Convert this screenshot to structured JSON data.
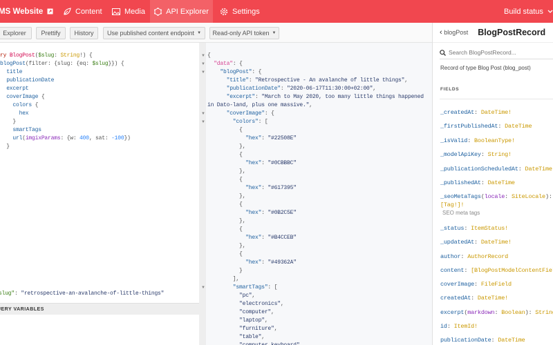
{
  "nav": {
    "brand": "MS Website",
    "tabs": [
      {
        "label": "Content",
        "icon": "leaf-icon"
      },
      {
        "label": "Media",
        "icon": "image-icon"
      },
      {
        "label": "API Explorer",
        "icon": "graphql-icon",
        "active": true
      },
      {
        "label": "Settings",
        "icon": "gear-icon"
      }
    ],
    "build_status": "Build status",
    "color": "#f1474f"
  },
  "toolbar": {
    "explorer": "Explorer",
    "prettify": "Prettify",
    "history": "History",
    "endpoint": "Use published content endpoint",
    "token": "Read-only API token"
  },
  "query": {
    "lines": [
      [
        [
          "ry ",
          "kw"
        ],
        [
          "BlogPost",
          "def"
        ],
        [
          "(",
          "pun"
        ],
        [
          "$slug",
          "var"
        ],
        [
          ": ",
          "pun"
        ],
        [
          "String",
          "type"
        ],
        [
          "!) {",
          "pun"
        ]
      ],
      [
        [
          "blogPost",
          "prop"
        ],
        [
          "(filter: {slug: {eq: ",
          "pun"
        ],
        [
          "$slug",
          "var"
        ],
        [
          "}}) {",
          "pun"
        ]
      ],
      [
        [
          "  title",
          "prop"
        ]
      ],
      [
        [
          "  publicationDate",
          "prop"
        ]
      ],
      [
        [
          "  excerpt",
          "prop"
        ]
      ],
      [
        [
          "  coverImage",
          "prop"
        ],
        [
          " {",
          "pun"
        ]
      ],
      [
        [
          "    colors",
          "prop"
        ],
        [
          " {",
          "pun"
        ]
      ],
      [
        [
          "      hex",
          "prop"
        ]
      ],
      [
        [
          "    }",
          "pun"
        ]
      ],
      [
        [
          "    smartTags",
          "prop"
        ]
      ],
      [
        [
          "    url",
          "prop"
        ],
        [
          "(",
          "pun"
        ],
        [
          "imgixParams",
          "arg"
        ],
        [
          ": {w: ",
          "pun"
        ],
        [
          "400",
          "num"
        ],
        [
          ", sat: ",
          "pun"
        ],
        [
          "-100",
          "num"
        ],
        [
          "})",
          "pun"
        ]
      ],
      [
        [
          "  }",
          "pun"
        ]
      ]
    ],
    "variables_header": "QUERY VARIABLES",
    "variables_lines": [
      [
        [
          "slug\"",
          "var"
        ],
        [
          ": ",
          "pun"
        ],
        [
          "\"retrospective-an-avalanche-of-little-things\"",
          "str"
        ]
      ]
    ]
  },
  "result": {
    "lines": [
      [
        [
          "{",
          "pun"
        ]
      ],
      [
        [
          "  \"data\"",
          "pk"
        ],
        [
          ": {",
          "pun"
        ]
      ],
      [
        [
          "    \"blogPost\"",
          "prop"
        ],
        [
          ": {",
          "pun"
        ]
      ],
      [
        [
          "      \"title\"",
          "prop"
        ],
        [
          ": ",
          "pun"
        ],
        [
          "\"Retrospective - An avalanche of little things\"",
          "str"
        ],
        [
          ",",
          "pun"
        ]
      ],
      [
        [
          "      \"publicationDate\"",
          "prop"
        ],
        [
          ": ",
          "pun"
        ],
        [
          "\"2020-06-17T11:30:00+02:00\"",
          "str"
        ],
        [
          ",",
          "pun"
        ]
      ],
      [
        [
          "      \"excerpt\"",
          "prop"
        ],
        [
          ": ",
          "pun"
        ],
        [
          "\"March to May 2020, too many little things happened",
          "str"
        ]
      ],
      [
        [
          "in Dato-land, plus one massive.\"",
          "str"
        ],
        [
          ",",
          "pun"
        ]
      ],
      [
        [
          "      \"coverImage\"",
          "prop"
        ],
        [
          ": {",
          "pun"
        ]
      ],
      [
        [
          "        \"colors\"",
          "prop"
        ],
        [
          ": [",
          "pun"
        ]
      ],
      [
        [
          "          {",
          "pun"
        ]
      ],
      [
        [
          "            \"hex\"",
          "prop"
        ],
        [
          ": ",
          "pun"
        ],
        [
          "\"#22508E\"",
          "str"
        ]
      ],
      [
        [
          "          },",
          "pun"
        ]
      ],
      [
        [
          "          {",
          "pun"
        ]
      ],
      [
        [
          "            \"hex\"",
          "prop"
        ],
        [
          ": ",
          "pun"
        ],
        [
          "\"#0CBBBC\"",
          "str"
        ]
      ],
      [
        [
          "          },",
          "pun"
        ]
      ],
      [
        [
          "          {",
          "pun"
        ]
      ],
      [
        [
          "            \"hex\"",
          "prop"
        ],
        [
          ": ",
          "pun"
        ],
        [
          "\"#617395\"",
          "str"
        ]
      ],
      [
        [
          "          },",
          "pun"
        ]
      ],
      [
        [
          "          {",
          "pun"
        ]
      ],
      [
        [
          "            \"hex\"",
          "prop"
        ],
        [
          ": ",
          "pun"
        ],
        [
          "\"#0B2C5E\"",
          "str"
        ]
      ],
      [
        [
          "          },",
          "pun"
        ]
      ],
      [
        [
          "          {",
          "pun"
        ]
      ],
      [
        [
          "            \"hex\"",
          "prop"
        ],
        [
          ": ",
          "pun"
        ],
        [
          "\"#B4CCEB\"",
          "str"
        ]
      ],
      [
        [
          "          },",
          "pun"
        ]
      ],
      [
        [
          "          {",
          "pun"
        ]
      ],
      [
        [
          "            \"hex\"",
          "prop"
        ],
        [
          ": ",
          "pun"
        ],
        [
          "\"#49362A\"",
          "str"
        ]
      ],
      [
        [
          "          }",
          "pun"
        ]
      ],
      [
        [
          "        ],",
          "pun"
        ]
      ],
      [
        [
          "        \"smartTags\"",
          "prop"
        ],
        [
          ": [",
          "pun"
        ]
      ],
      [
        [
          "          \"pc\"",
          "str"
        ],
        [
          ",",
          "pun"
        ]
      ],
      [
        [
          "          \"electronics\"",
          "str"
        ],
        [
          ",",
          "pun"
        ]
      ],
      [
        [
          "          \"computer\"",
          "str"
        ],
        [
          ",",
          "pun"
        ]
      ],
      [
        [
          "          \"laptop\"",
          "str"
        ],
        [
          ",",
          "pun"
        ]
      ],
      [
        [
          "          \"furniture\"",
          "str"
        ],
        [
          ",",
          "pun"
        ]
      ],
      [
        [
          "          \"table\"",
          "str"
        ],
        [
          ",",
          "pun"
        ]
      ],
      [
        [
          "          \"computer keyboard\"",
          "str"
        ],
        [
          ",",
          "pun"
        ]
      ]
    ],
    "fold_lines": [
      0,
      1,
      2,
      7,
      8,
      28
    ]
  },
  "docs": {
    "back": "blogPost",
    "title": "BlogPostRecord",
    "search_placeholder": "Search BlogPostRecord...",
    "description": "Record of type Blog Post (blog_post)",
    "fields_header": "FIELDS",
    "fields": [
      [
        [
          "_createdAt",
          "prop"
        ],
        [
          ": ",
          "pun"
        ],
        [
          "DateTime!",
          "type"
        ]
      ],
      [
        [
          "_firstPublishedAt",
          "prop"
        ],
        [
          ": ",
          "pun"
        ],
        [
          "DateTime",
          "type"
        ]
      ],
      [
        [
          "_isValid",
          "prop"
        ],
        [
          ": ",
          "pun"
        ],
        [
          "BooleanType!",
          "type"
        ]
      ],
      [
        [
          "_modelApiKey",
          "prop"
        ],
        [
          ": ",
          "pun"
        ],
        [
          "String!",
          "type"
        ]
      ],
      [
        [
          "_publicationScheduledAt",
          "prop"
        ],
        [
          ": ",
          "pun"
        ],
        [
          "DateTime",
          "type"
        ]
      ],
      [
        [
          "_publishedAt",
          "prop"
        ],
        [
          ": ",
          "pun"
        ],
        [
          "DateTime",
          "type"
        ]
      ],
      [
        [
          "_seoMetaTags",
          "prop"
        ],
        [
          "(",
          "pun"
        ],
        [
          "locale",
          "arg"
        ],
        [
          ": ",
          "pun"
        ],
        [
          "SiteLocale",
          "type"
        ],
        [
          "):\n",
          "pun"
        ],
        [
          "[Tag!]!",
          "type"
        ]
      ],
      [
        [
          "_status",
          "prop"
        ],
        [
          ": ",
          "pun"
        ],
        [
          "ItemStatus!",
          "type"
        ]
      ],
      [
        [
          "_updatedAt",
          "prop"
        ],
        [
          ": ",
          "pun"
        ],
        [
          "DateTime!",
          "type"
        ]
      ],
      [
        [
          "author",
          "prop"
        ],
        [
          ": ",
          "pun"
        ],
        [
          "AuthorRecord",
          "type"
        ]
      ],
      [
        [
          "content",
          "prop"
        ],
        [
          ": ",
          "pun"
        ],
        [
          "[BlogPostModelContentField]",
          "type"
        ]
      ],
      [
        [
          "coverImage",
          "prop"
        ],
        [
          ": ",
          "pun"
        ],
        [
          "FileField",
          "type"
        ]
      ],
      [
        [
          "createdAt",
          "prop"
        ],
        [
          ": ",
          "pun"
        ],
        [
          "DateTime!",
          "type"
        ]
      ],
      [
        [
          "excerpt",
          "prop"
        ],
        [
          "(",
          "pun"
        ],
        [
          "markdown",
          "arg"
        ],
        [
          ": ",
          "pun"
        ],
        [
          "Boolean",
          "type"
        ],
        [
          "): ",
          "pun"
        ],
        [
          "String",
          "type"
        ]
      ],
      [
        [
          "id",
          "prop"
        ],
        [
          ": ",
          "pun"
        ],
        [
          "ItemId!",
          "type"
        ]
      ],
      [
        [
          "publicationDate",
          "prop"
        ],
        [
          ": ",
          "pun"
        ],
        [
          "DateTime",
          "type"
        ]
      ]
    ],
    "seo_description": "SEO meta tags"
  }
}
